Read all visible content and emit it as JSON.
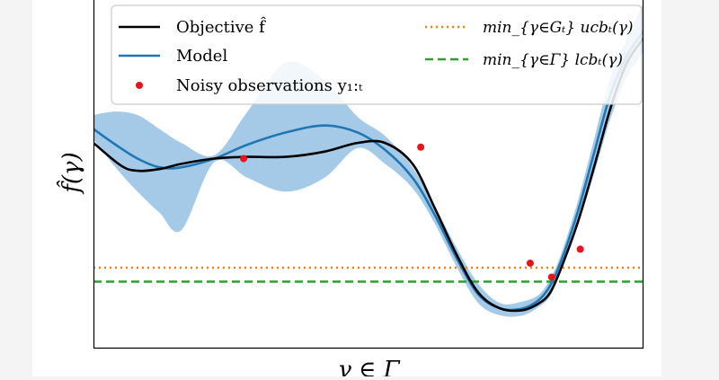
{
  "chart_data": {
    "type": "line",
    "x_domain": [
      0,
      1
    ],
    "y_domain": [
      0,
      1
    ],
    "xlabel": "γ ∈ Γ",
    "ylabel": "f̂(γ)",
    "grid": false,
    "legend_position": "top",
    "legend": [
      {
        "label": "Objective f̂",
        "color": "#000000",
        "style": "solid"
      },
      {
        "label": "Model",
        "color": "#1f77b4",
        "style": "solid"
      },
      {
        "label": "Noisy observations y₁:ₜ",
        "color": "#e8141c",
        "style": "dot"
      },
      {
        "label": "min_{γ∈Gₜ} ucbₜ(γ)",
        "color": "#ff7f0e",
        "style": "dotted"
      },
      {
        "label": "min_{γ∈Γ} lcbₜ(γ)",
        "color": "#2ca02c",
        "style": "dashed"
      }
    ],
    "series": [
      {
        "key": "objective",
        "color": "#000000",
        "x": [
          0,
          0.05,
          0.08,
          0.12,
          0.16,
          0.22,
          0.28,
          0.35,
          0.42,
          0.48,
          0.53,
          0.58,
          0.62,
          0.66,
          0.7,
          0.74,
          0.78,
          0.81,
          0.83,
          0.85,
          0.88,
          0.91,
          0.94,
          0.97,
          1.0
        ],
        "y": [
          0.59,
          0.525,
          0.51,
          0.515,
          0.53,
          0.545,
          0.55,
          0.55,
          0.565,
          0.59,
          0.59,
          0.53,
          0.405,
          0.27,
          0.16,
          0.115,
          0.11,
          0.13,
          0.16,
          0.23,
          0.36,
          0.52,
          0.69,
          0.82,
          0.89
        ]
      },
      {
        "key": "model_mean",
        "color": "#1f77b4",
        "x": [
          0,
          0.04,
          0.08,
          0.12,
          0.16,
          0.22,
          0.28,
          0.35,
          0.42,
          0.48,
          0.53,
          0.58,
          0.62,
          0.66,
          0.7,
          0.74,
          0.78,
          0.81,
          0.83,
          0.85,
          0.88,
          0.91,
          0.94,
          0.97,
          1.0
        ],
        "y": [
          0.63,
          0.585,
          0.545,
          0.52,
          0.52,
          0.545,
          0.585,
          0.62,
          0.64,
          0.62,
          0.57,
          0.49,
          0.385,
          0.26,
          0.155,
          0.115,
          0.115,
          0.14,
          0.18,
          0.25,
          0.39,
          0.56,
          0.73,
          0.84,
          0.91
        ]
      }
    ],
    "confidence_band": {
      "color": "#7fb4dd",
      "x": [
        0,
        0.04,
        0.08,
        0.12,
        0.16,
        0.22,
        0.28,
        0.35,
        0.42,
        0.48,
        0.53,
        0.58,
        0.62,
        0.66,
        0.7,
        0.74,
        0.78,
        0.81,
        0.83,
        0.85,
        0.88,
        0.91,
        0.94,
        0.97,
        1.0
      ],
      "upper": [
        0.67,
        0.68,
        0.67,
        0.63,
        0.59,
        0.555,
        0.68,
        0.82,
        0.77,
        0.665,
        0.61,
        0.52,
        0.41,
        0.29,
        0.185,
        0.13,
        0.135,
        0.155,
        0.2,
        0.27,
        0.42,
        0.6,
        0.78,
        0.89,
        0.99
      ],
      "lower": [
        0.6,
        0.52,
        0.45,
        0.39,
        0.34,
        0.535,
        0.49,
        0.45,
        0.49,
        0.575,
        0.53,
        0.46,
        0.36,
        0.235,
        0.13,
        0.095,
        0.095,
        0.12,
        0.15,
        0.22,
        0.35,
        0.5,
        0.66,
        0.78,
        0.85
      ]
    },
    "observations": {
      "color": "#e8141c",
      "points": [
        {
          "x": 0.273,
          "y": 0.545
        },
        {
          "x": 0.595,
          "y": 0.578
        },
        {
          "x": 0.794,
          "y": 0.245
        },
        {
          "x": 0.833,
          "y": 0.205
        },
        {
          "x": 0.885,
          "y": 0.285
        }
      ]
    },
    "hlines": [
      {
        "key": "ucb_min",
        "y": 0.232,
        "color": "#ff7f0e",
        "style": "dotted"
      },
      {
        "key": "lcb_min",
        "y": 0.192,
        "color": "#2ca02c",
        "style": "dashed"
      }
    ]
  }
}
